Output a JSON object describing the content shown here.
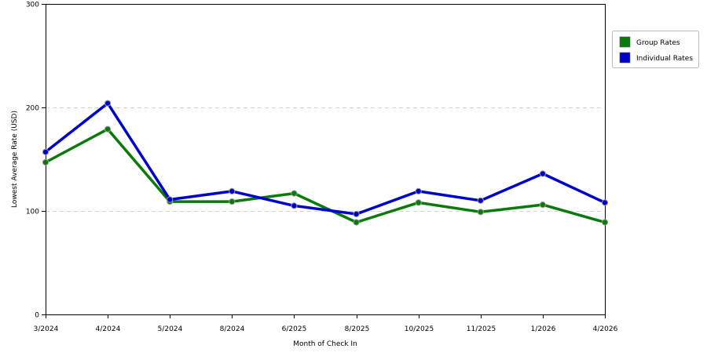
{
  "chart_data": {
    "type": "line",
    "title": "",
    "xlabel": "Month of Check In",
    "ylabel": "Lowest Average Rate (USD)",
    "categories": [
      "3/2024",
      "4/2024",
      "5/2024",
      "8/2024",
      "6/2025",
      "8/2025",
      "10/2025",
      "11/2025",
      "1/2026",
      "4/2026"
    ],
    "ylim": [
      0,
      300
    ],
    "yticks": [
      0,
      100,
      200,
      300
    ],
    "grid": "horizontal dashed",
    "legend_position": "right",
    "series": [
      {
        "name": "Group Rates",
        "color": "#0A7A0A",
        "values": [
          147,
          179,
          109,
          109,
          117,
          89,
          108,
          99,
          106,
          89
        ]
      },
      {
        "name": "Individual Rates",
        "color": "#0000CC",
        "values": [
          157,
          204,
          111,
          119,
          105,
          97,
          119,
          110,
          136,
          108
        ]
      }
    ]
  }
}
